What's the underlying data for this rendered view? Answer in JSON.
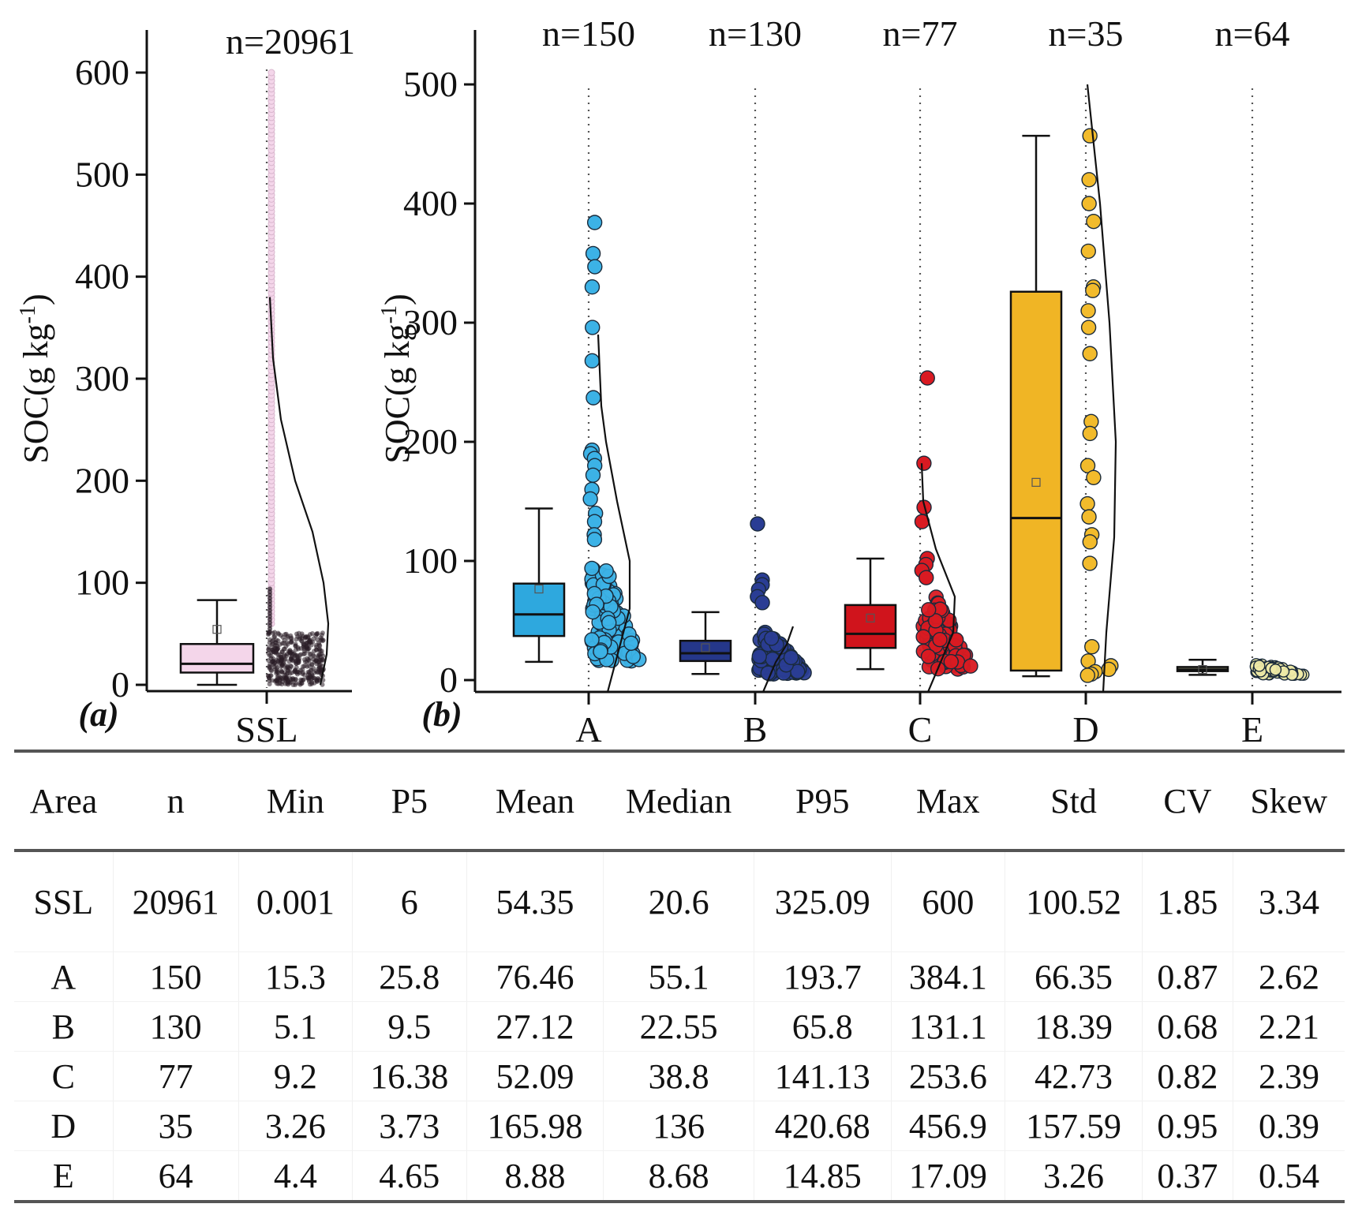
{
  "chart_data": [
    {
      "panel": "(a)",
      "type": "box",
      "ylabel": "SOC(g kg",
      "ylabel_sup": "-1",
      "ylabel_close": ")",
      "ylim": [
        0,
        620
      ],
      "yticks": [
        0,
        100,
        200,
        300,
        400,
        500,
        600
      ],
      "categories": [
        "SSL"
      ],
      "groups": [
        {
          "name": "SSL",
          "n_label": "n=20961",
          "n": 20961,
          "color": "#f4d6ea",
          "point_color": "#f4d6ea",
          "whisker_low": 0.001,
          "q1": 12,
          "median": 20.6,
          "q3": 40,
          "whisker_high": 83,
          "mean": 54.35,
          "max": 600,
          "density_peak": 55
        }
      ]
    },
    {
      "panel": "(b)",
      "type": "box",
      "ylabel": "SOC(g kg",
      "ylabel_sup": "-1",
      "ylabel_close": ")",
      "ylim": [
        0,
        540
      ],
      "yticks": [
        0,
        100,
        200,
        300,
        400,
        500
      ],
      "categories": [
        "A",
        "B",
        "C",
        "D",
        "E"
      ],
      "groups": [
        {
          "name": "A",
          "n_label": "n=150",
          "n": 150,
          "color": "#2ea8de",
          "point_color": "#3cb2e6",
          "whisker_low": 15.3,
          "q1": 37,
          "median": 55.1,
          "q3": 81,
          "whisker_high": 144,
          "mean": 76.46,
          "outliers": [
            384.1,
            358,
            347,
            330,
            296,
            268,
            237,
            193,
            190,
            186,
            180,
            172,
            160,
            152,
            140,
            133,
            122,
            118
          ]
        },
        {
          "name": "B",
          "n_label": "n=130",
          "n": 130,
          "color": "#25378a",
          "point_color": "#2a3d94",
          "whisker_low": 5.1,
          "q1": 16,
          "median": 22.55,
          "q3": 33,
          "whisker_high": 57,
          "mean": 27.12,
          "outliers": [
            131.1,
            84,
            80,
            76,
            70,
            65
          ]
        },
        {
          "name": "C",
          "n_label": "n=77",
          "n": 77,
          "color": "#d0141c",
          "point_color": "#d91a22",
          "whisker_low": 9.2,
          "q1": 27,
          "median": 38.8,
          "q3": 63,
          "whisker_high": 102,
          "mean": 52.09,
          "outliers": [
            253.6,
            182,
            145,
            133,
            102,
            97,
            92,
            86
          ]
        },
        {
          "name": "D",
          "n_label": "n=35",
          "n": 35,
          "color": "#f0b525",
          "point_color": "#f2bb2c",
          "whisker_low": 3.26,
          "q1": 8,
          "median": 136,
          "q3": 326,
          "whisker_high": 456.9,
          "mean": 165.98,
          "outliers": [
            456.9,
            420,
            400,
            385,
            360,
            330,
            327,
            310,
            296,
            274,
            217,
            207,
            180,
            170,
            148,
            137,
            122,
            116,
            98,
            28,
            16,
            12,
            9,
            7,
            5,
            4
          ]
        },
        {
          "name": "E",
          "n_label": "n=64",
          "n": 64,
          "color": "#7a7a5e",
          "point_color": "#eeeaa6",
          "whisker_low": 4.4,
          "q1": 7.5,
          "median": 8.68,
          "q3": 11,
          "whisker_high": 17.09,
          "mean": 8.88,
          "outliers": []
        }
      ]
    }
  ],
  "panel_labels": {
    "a": "(a)",
    "b": "(b)"
  },
  "table": {
    "headers": [
      "Area",
      "n",
      "Min",
      "P5",
      "Mean",
      "Median",
      "P95",
      "Max",
      "Std",
      "CV",
      "Skew"
    ],
    "rows": [
      [
        "SSL",
        "20961",
        "0.001",
        "6",
        "54.35",
        "20.6",
        "325.09",
        "600",
        "100.52",
        "1.85",
        "3.34"
      ],
      [
        "A",
        "150",
        "15.3",
        "25.8",
        "76.46",
        "55.1",
        "193.7",
        "384.1",
        "66.35",
        "0.87",
        "2.62"
      ],
      [
        "B",
        "130",
        "5.1",
        "9.5",
        "27.12",
        "22.55",
        "65.8",
        "131.1",
        "18.39",
        "0.68",
        "2.21"
      ],
      [
        "C",
        "77",
        "9.2",
        "16.38",
        "52.09",
        "38.8",
        "141.13",
        "253.6",
        "42.73",
        "0.82",
        "2.39"
      ],
      [
        "D",
        "35",
        "3.26",
        "3.73",
        "165.98",
        "136",
        "420.68",
        "456.9",
        "157.59",
        "0.95",
        "0.39"
      ],
      [
        "E",
        "64",
        "4.4",
        "4.65",
        "8.88",
        "8.68",
        "14.85",
        "17.09",
        "3.26",
        "0.37",
        "0.54"
      ]
    ]
  }
}
